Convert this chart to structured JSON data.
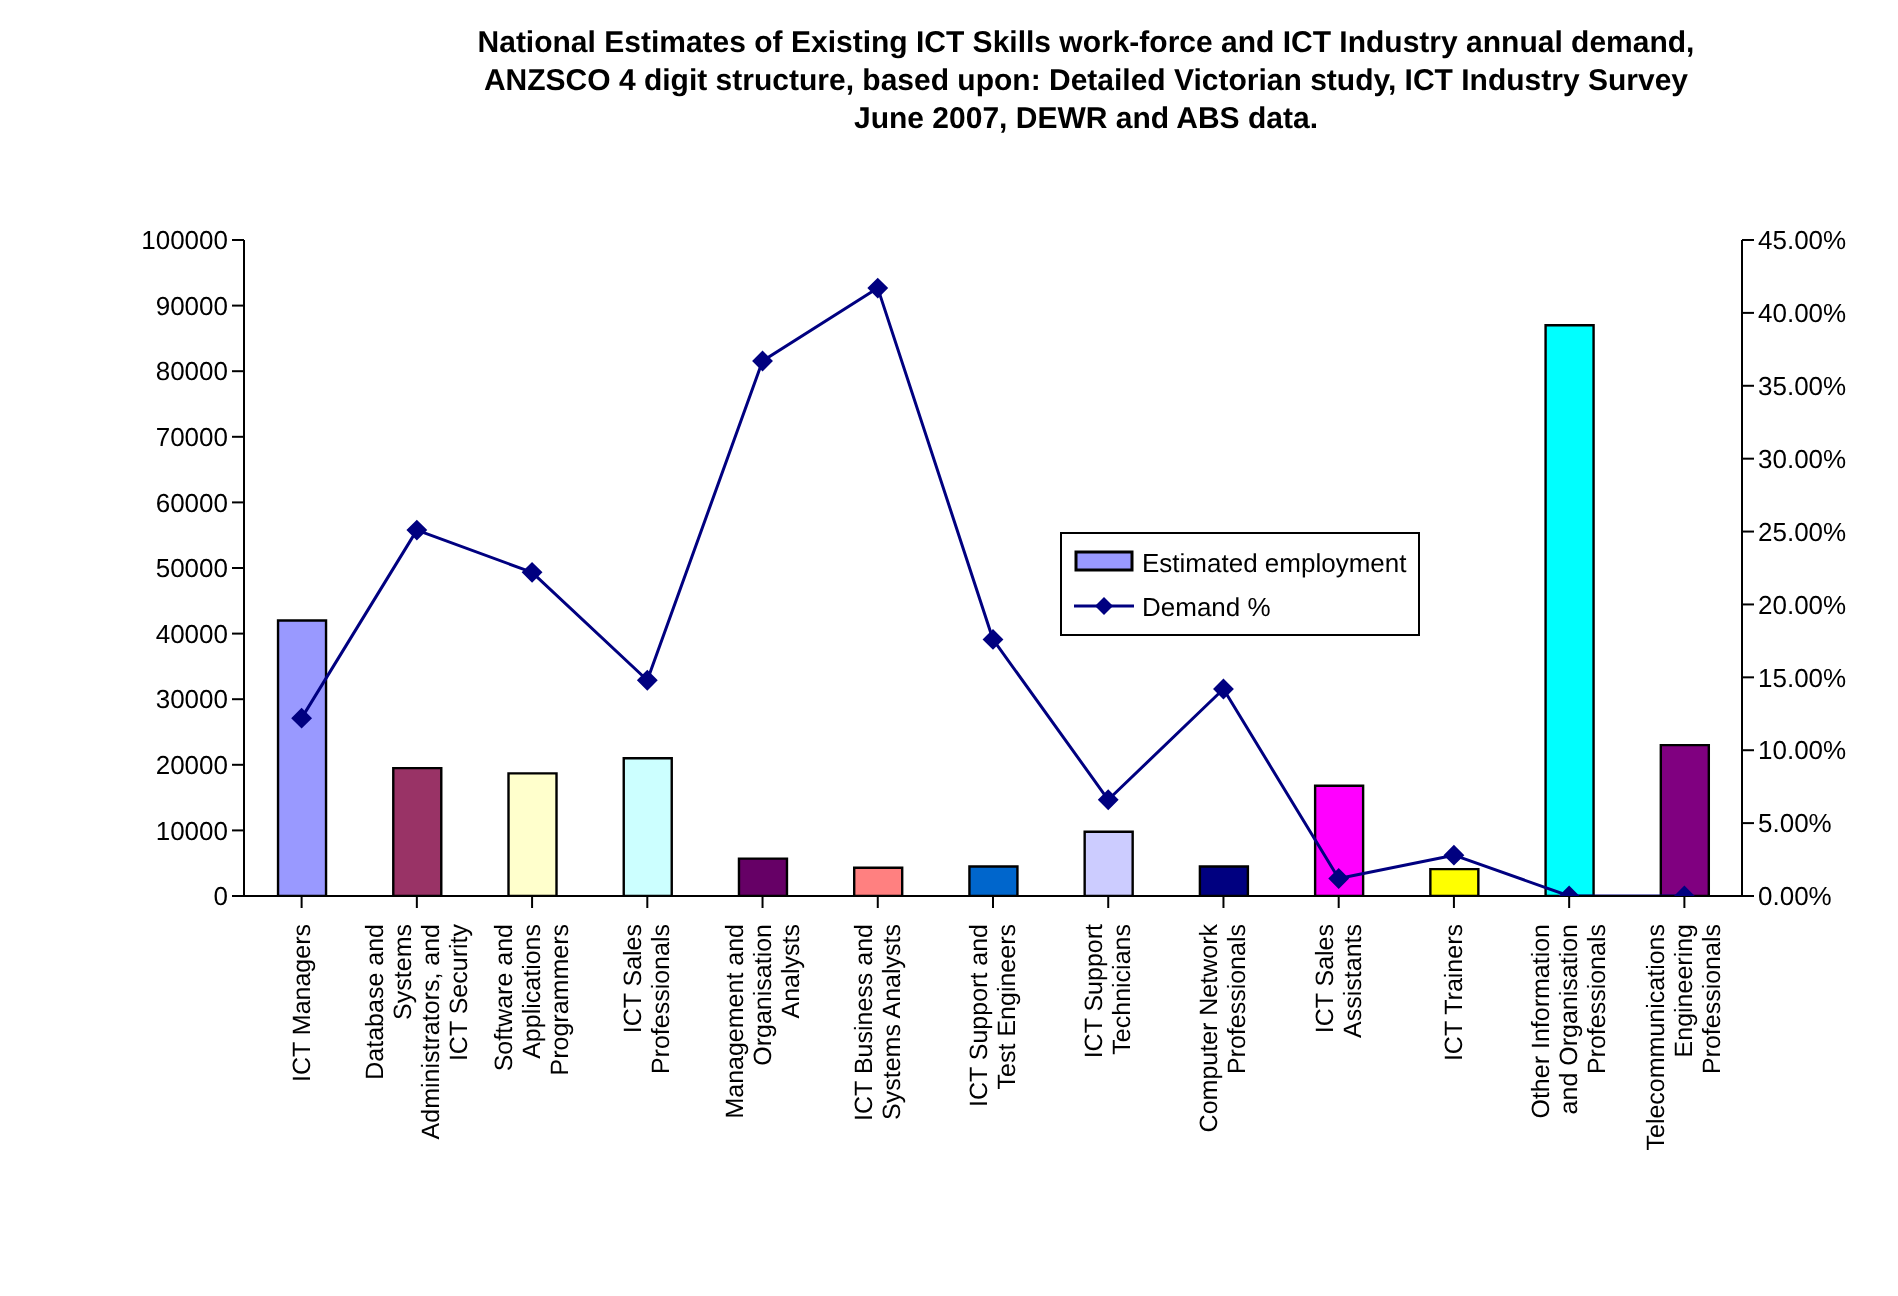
{
  "chart_data": {
    "type": "bar",
    "title": "National Estimates of Existing ICT Skills work-force and ICT Industry annual demand, ANZSCO 4 digit structure, based upon: Detailed Victorian study, ICT Industry Survey June 2007, DEWR and ABS data.",
    "categories": [
      "ICT Managers",
      "Database and Systems Administrators, and ICT Security",
      "Software and Applications Programmers",
      "ICT Sales Professionals",
      "Management and Organisation Analysts",
      "ICT Business and Systems Analysts",
      "ICT Support and Test Engineers",
      "ICT Support Technicians",
      "Computer Network Professionals",
      "ICT Sales Assistants",
      "ICT Trainers",
      "Other Information and Organisation Professionals",
      "Telecommunications Engineering Professionals"
    ],
    "series": [
      {
        "name": "Estimated employment",
        "colors": [
          "#9999ff",
          "#993366",
          "#ffffcc",
          "#ccffff",
          "#660066",
          "#ff8080",
          "#0066cc",
          "#ccccff",
          "#000080",
          "#ff00ff",
          "#ffff00",
          "#00ffff",
          "#800080"
        ],
        "values": [
          42000,
          19500,
          18700,
          21000,
          5700,
          4300,
          4500,
          9800,
          4500,
          16800,
          4100,
          87000,
          23000
        ]
      },
      {
        "name": "Demand %",
        "type": "line",
        "axis": "y2",
        "color": "#000080",
        "marker": "diamond",
        "values": [
          12.2,
          25.1,
          22.2,
          14.8,
          36.7,
          41.7,
          17.6,
          6.6,
          14.2,
          1.2,
          2.8,
          0,
          0
        ]
      }
    ],
    "ylim": [
      0,
      100000
    ],
    "yticks": [
      0,
      10000,
      20000,
      30000,
      40000,
      50000,
      60000,
      70000,
      80000,
      90000,
      100000
    ],
    "y2lim": [
      0,
      45
    ],
    "y2ticks": [
      {
        "value": 0,
        "label": "0.00%"
      },
      {
        "value": 5,
        "label": "5.00%"
      },
      {
        "value": 10,
        "label": "10.00%"
      },
      {
        "value": 15,
        "label": "15.00%"
      },
      {
        "value": 20,
        "label": "20.00%"
      },
      {
        "value": 25,
        "label": "25.00%"
      },
      {
        "value": 30,
        "label": "30.00%"
      },
      {
        "value": 35,
        "label": "35.00%"
      },
      {
        "value": 40,
        "label": "40.00%"
      },
      {
        "value": 45,
        "label": "45.00%"
      }
    ],
    "legend": "right"
  }
}
